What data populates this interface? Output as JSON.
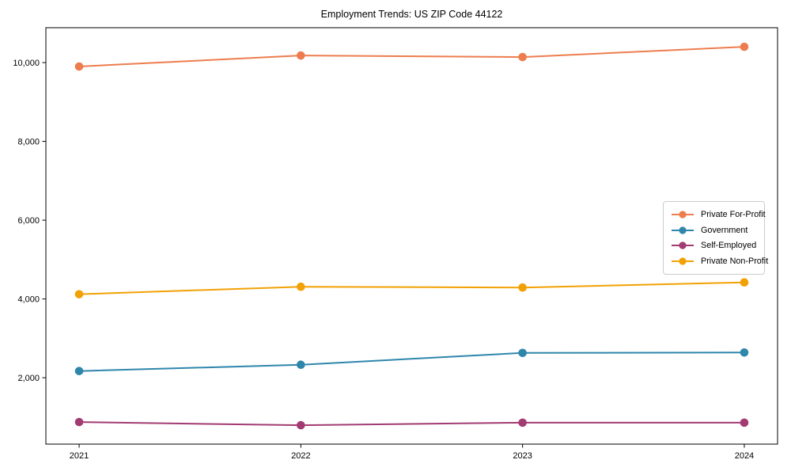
{
  "chart_data": {
    "type": "line",
    "title": "Employment Trends: US ZIP Code 44122",
    "categories": [
      "2021",
      "2022",
      "2023",
      "2024"
    ],
    "series": [
      {
        "name": "Private For-Profit",
        "color": "#ED7D4E",
        "values": [
          9900,
          10180,
          10140,
          10400
        ]
      },
      {
        "name": "Government",
        "color": "#2E86AB",
        "values": [
          2170,
          2330,
          2630,
          2640
        ]
      },
      {
        "name": "Self-Employed",
        "color": "#A23B72",
        "values": [
          875,
          795,
          860,
          860
        ]
      },
      {
        "name": "Private Non-Profit",
        "color": "#F2A104",
        "values": [
          4120,
          4310,
          4290,
          4420
        ]
      }
    ],
    "xlabel": "",
    "ylabel": "",
    "ylim": [
      315,
      10885
    ],
    "yticks": [
      2000,
      4000,
      6000,
      8000,
      10000
    ],
    "ytick_labels": [
      "2,000",
      "4,000",
      "6,000",
      "8,000",
      "10,000"
    ],
    "grid": false,
    "legend_position": "center-right",
    "axis_color": "#000000",
    "background_color": "#ffffff"
  }
}
